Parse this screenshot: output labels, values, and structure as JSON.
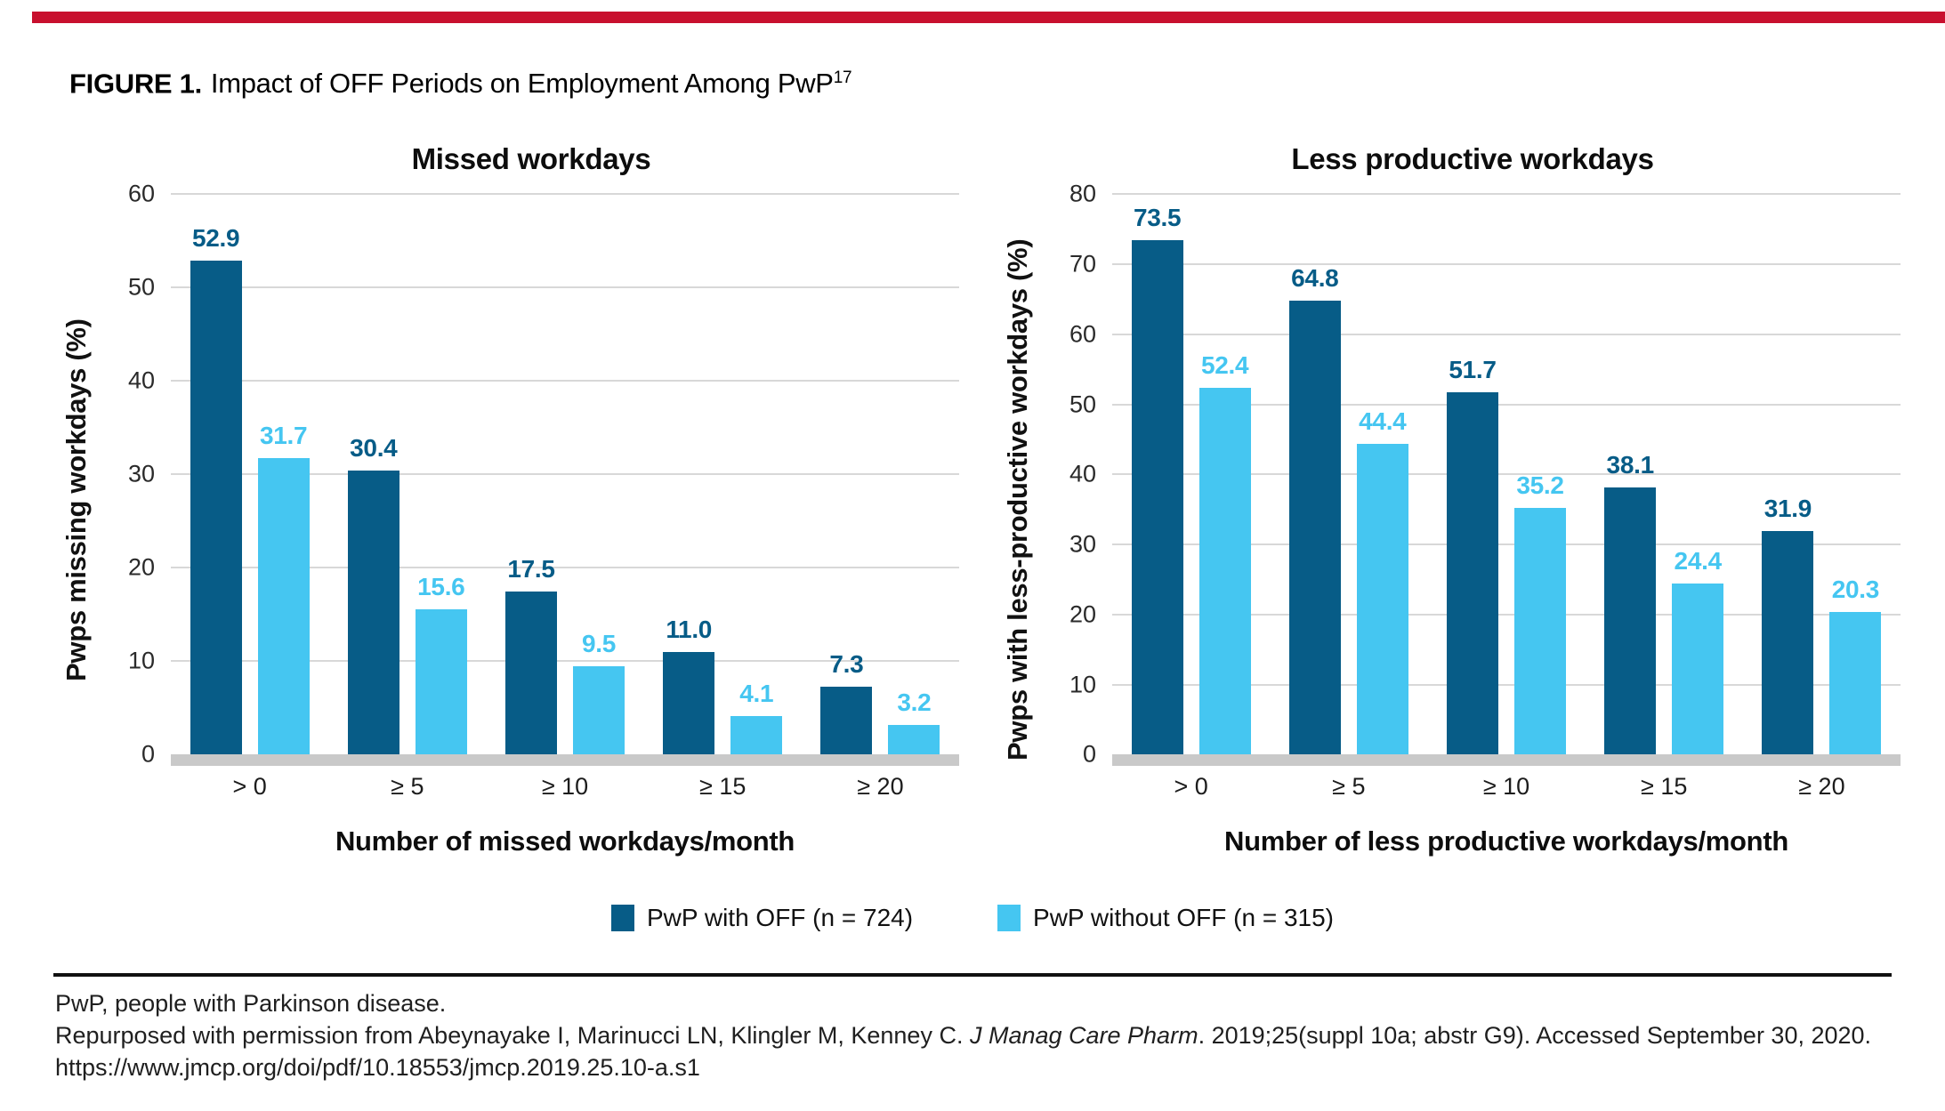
{
  "page": {
    "figure_label": "FIGURE 1.",
    "figure_title": "Impact of OFF Periods on Employment Among PwP",
    "figure_title_superscript": "17"
  },
  "accent_bar_color": "#C8102E",
  "colors": {
    "with_off_bar": "#075C87",
    "without_off_bar": "#45C6F1",
    "gridline": "#D8D8D8",
    "baseline_band": "#C9C9C9"
  },
  "legend": [
    {
      "label": "PwP with OFF (n = 724)",
      "color": "#075C87"
    },
    {
      "label": "PwP without OFF (n = 315)",
      "color": "#45C6F1"
    }
  ],
  "chart_data": [
    {
      "type": "bar",
      "title": "Missed workdays",
      "ylabel": "Pwps missing workdays (%)",
      "xlabel": "Number of missed workdays/month",
      "categories": [
        "> 0",
        "≥ 5",
        "≥ 10",
        "≥ 15",
        "≥ 20"
      ],
      "ylim": [
        0,
        60
      ],
      "ytick_step": 10,
      "grid": true,
      "legend_position": "below",
      "series": [
        {
          "name": "PwP with OFF (n = 724)",
          "values": [
            52.9,
            30.4,
            17.5,
            11.0,
            7.3
          ]
        },
        {
          "name": "PwP without OFF (n = 315)",
          "values": [
            31.7,
            15.6,
            9.5,
            4.1,
            3.2
          ]
        }
      ]
    },
    {
      "type": "bar",
      "title": "Less productive workdays",
      "ylabel": "Pwps with less-productive workdays (%)",
      "xlabel": "Number of less productive workdays/month",
      "categories": [
        "> 0",
        "≥ 5",
        "≥ 10",
        "≥ 15",
        "≥ 20"
      ],
      "ylim": [
        0,
        80
      ],
      "ytick_step": 10,
      "grid": true,
      "legend_position": "below",
      "series": [
        {
          "name": "PwP with OFF (n = 724)",
          "values": [
            73.5,
            64.8,
            51.7,
            38.1,
            31.9
          ]
        },
        {
          "name": "PwP without OFF (n = 315)",
          "values": [
            52.4,
            44.4,
            35.2,
            24.4,
            20.3
          ]
        }
      ]
    }
  ],
  "footnotes": {
    "line1": "PwP, people with Parkinson disease.",
    "line2_pre": "Repurposed with permission from Abeynayake I, Marinucci LN, Klingler M, Kenney C. ",
    "line2_italic": "J Manag Care Pharm",
    "line2_post": ". 2019;25(suppl 10a; abstr G9). Accessed September 30, 2020.",
    "line3": "https://www.jmcp.org/doi/pdf/10.18553/jmcp.2019.25.10-a.s1"
  }
}
